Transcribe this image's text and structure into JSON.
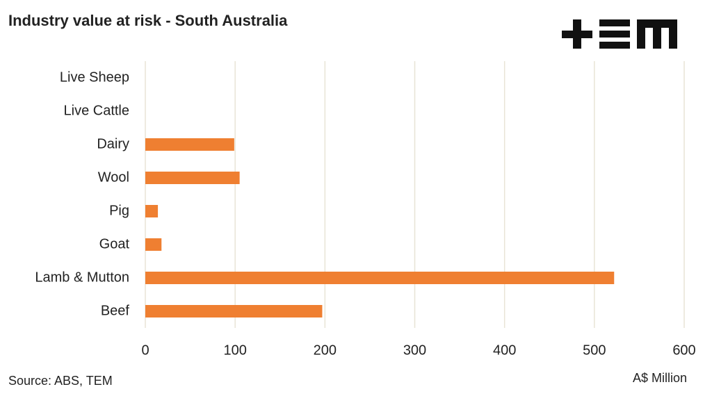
{
  "chart_data": {
    "type": "hbar",
    "title": "Industry value at risk - South Australia",
    "categories": [
      "Live Sheep",
      "Live Cattle",
      "Dairy",
      "Wool",
      "Pig",
      "Goat",
      "Lamb & Mutton",
      "Beef"
    ],
    "values": [
      0,
      0,
      99,
      105,
      14,
      18,
      522,
      197
    ],
    "color": "#ef7f31",
    "xlim": [
      0,
      600
    ],
    "xticks": [
      0,
      100,
      200,
      300,
      400,
      500,
      600
    ],
    "grid": true,
    "x_label": "A$ Million",
    "source": "Source: ABS, TEM"
  }
}
